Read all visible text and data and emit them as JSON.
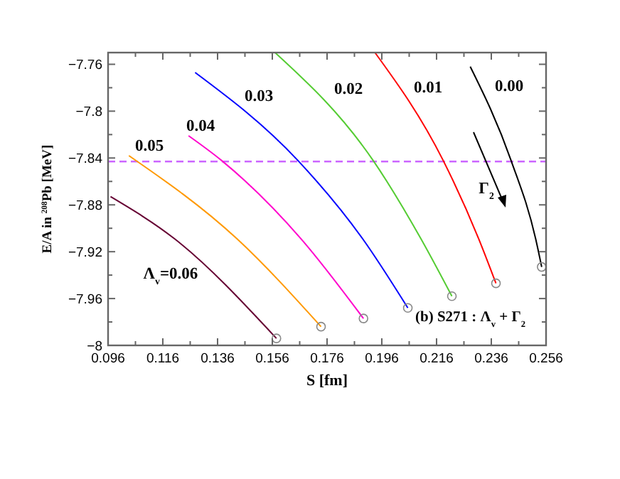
{
  "chart_data": {
    "type": "line",
    "xlabel": "S [fm]",
    "ylabel": "E/A in $^{208}$Pb [MeV]",
    "xlim": [
      0.096,
      0.256
    ],
    "ylim": [
      -8,
      -7.75
    ],
    "xticks": [
      0.096,
      {
        "value": 0.106,
        "label": null
      },
      0.116,
      {
        "value": 0.126,
        "label": null
      },
      0.136,
      {
        "value": 0.146,
        "label": null
      },
      0.156,
      {
        "value": 0.166,
        "label": null
      },
      0.176,
      {
        "value": 0.186,
        "label": null
      },
      0.196,
      {
        "value": 0.206,
        "label": null
      },
      0.216,
      {
        "value": 0.226,
        "label": null
      },
      0.236,
      {
        "value": 0.246,
        "label": null
      },
      0.256
    ],
    "yticks": [
      -8,
      {
        "value": -7.98,
        "label": null
      },
      -7.96,
      {
        "value": -7.94,
        "label": null
      },
      -7.92,
      {
        "value": -7.9,
        "label": null
      },
      -7.88,
      {
        "value": -7.86,
        "label": null
      },
      -7.84,
      {
        "value": -7.82,
        "label": null
      },
      -7.8,
      {
        "value": -7.78,
        "label": null
      },
      -7.76
    ],
    "grid": false,
    "marker": "none",
    "line_style": "solid",
    "series": [
      {
        "color": "#000000",
        "x": [
          0.2283,
          0.2432,
          0.2522,
          0.2544
        ],
        "values": [
          -7.762,
          -7.842,
          -7.909,
          -7.933
        ]
      },
      {
        "color": "#ff0000",
        "x": [
          0.1935,
          0.2184,
          0.2314,
          0.2377
        ],
        "values": [
          -7.75,
          -7.842,
          -7.909,
          -7.947
        ]
      },
      {
        "color": "#55cc33",
        "x": [
          0.157,
          0.1928,
          0.2103,
          0.2216
        ],
        "values": [
          -7.75,
          -7.842,
          -7.909,
          -7.958
        ]
      },
      {
        "color": "#0000ff",
        "x": [
          0.1278,
          0.1653,
          0.189,
          0.2055
        ],
        "values": [
          -7.767,
          -7.842,
          -7.909,
          -7.968
        ]
      },
      {
        "color": "#ff00cc",
        "x": [
          0.1254,
          0.1374,
          0.1665,
          0.1893
        ],
        "values": [
          -7.821,
          -7.842,
          -7.909,
          -7.977
        ]
      },
      {
        "color": "#ff9900",
        "x": [
          0.1036,
          0.1431,
          0.1738
        ],
        "values": [
          -7.838,
          -7.909,
          -7.984
        ]
      },
      {
        "color": "#660033",
        "x": [
          0.0969,
          0.1203,
          0.1575
        ],
        "values": [
          -7.873,
          -7.909,
          -7.994
        ]
      },
      {
        "type": "scatter",
        "marker": "circle",
        "color": "#888888",
        "x": [
          0.2544,
          0.2377,
          0.2216,
          0.2055,
          0.1893,
          0.1738,
          0.1575
        ],
        "values": [
          -7.933,
          -7.947,
          -7.958,
          -7.968,
          -7.977,
          -7.984,
          -7.994
        ]
      }
    ],
    "ref_lines": [
      {
        "axis": "y",
        "value": -7.843,
        "color": "#cc66ff",
        "line_style": "dashed"
      }
    ],
    "annotations": [
      "0.00",
      "0.01",
      "0.02",
      "0.03",
      "0.04",
      "0.05",
      "Λ$_{v}$=0.06",
      "Γ$_{2}$",
      "(b) S271 : Λ$_{v}$ + Γ$_{2}$"
    ]
  }
}
